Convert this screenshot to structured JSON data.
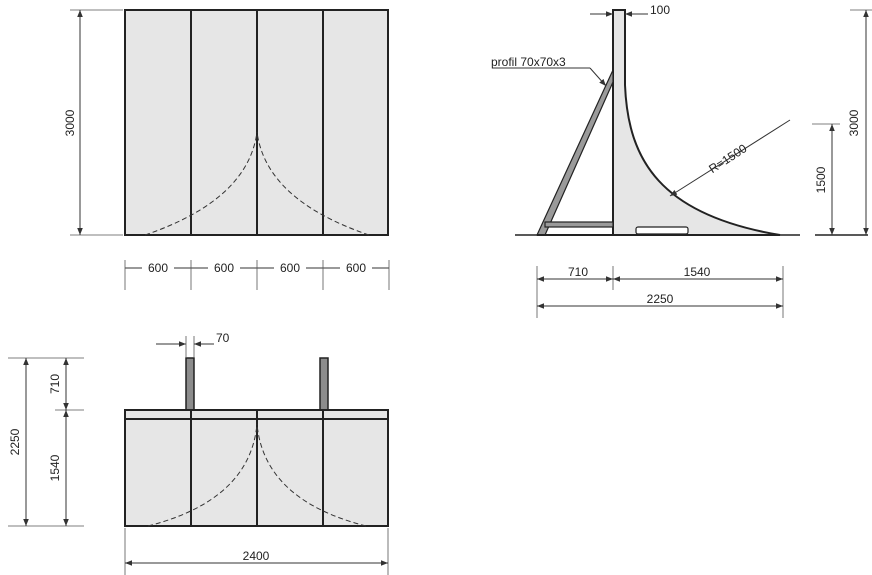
{
  "front_view": {
    "height_label": "3000",
    "panel_width_labels": [
      "600",
      "600",
      "600",
      "600"
    ]
  },
  "side_view": {
    "post_width_label": "100",
    "brace_label": "profil 70x70x3",
    "radius_label": "R=1500",
    "radius_height_label": "1500",
    "total_height_label": "3000",
    "brace_base_label": "710",
    "ramp_base_label": "1540",
    "total_base_label": "2250"
  },
  "top_view": {
    "post_width_label": "70",
    "total_depth_label": "2250",
    "support_depth_label": "710",
    "ramp_depth_label": "1540",
    "total_width_label": "2400"
  }
}
